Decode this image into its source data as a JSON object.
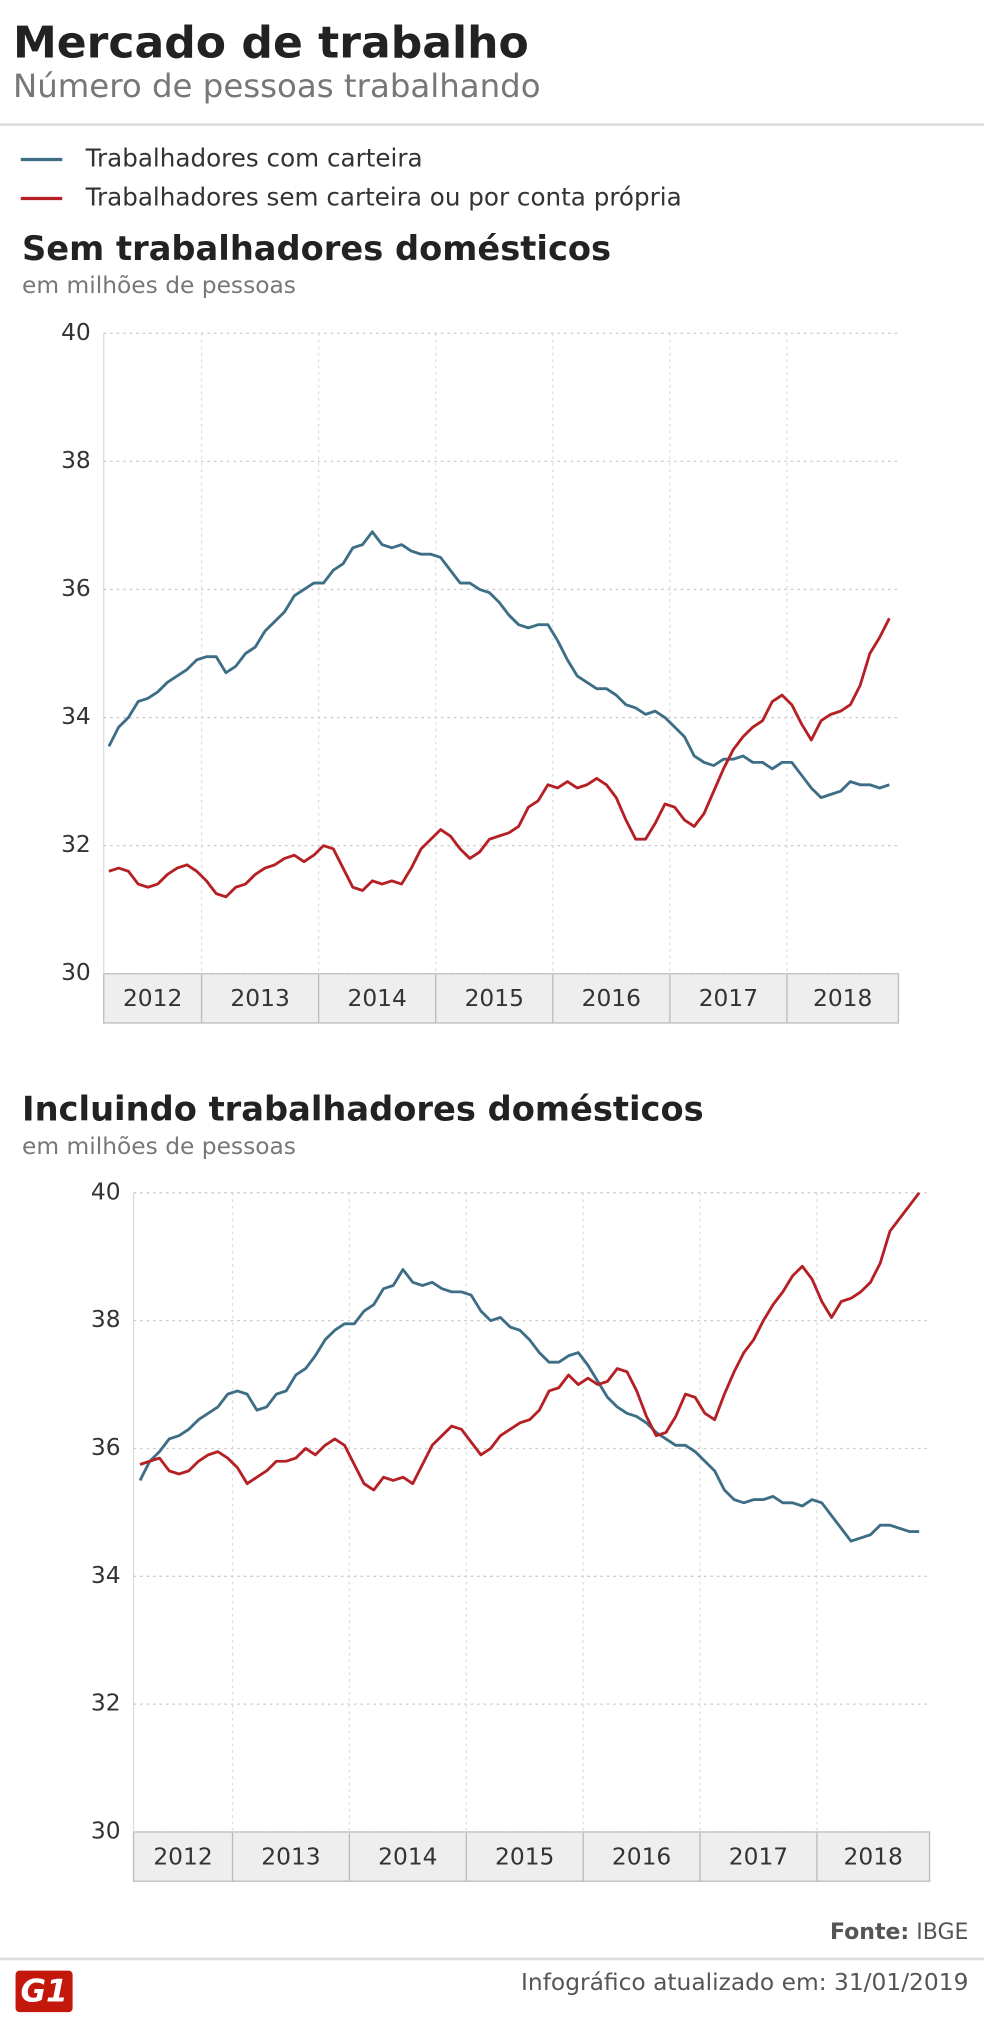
{
  "header": {
    "title": "Mercado de trabalho",
    "subtitle": "Número de pessoas trabalhando"
  },
  "chart_data": [
    {
      "type": "line",
      "title": "Sem trabalhadores domésticos",
      "subtitle": "em milhões de pessoas",
      "x_labels": [
        "2012",
        "2013",
        "2014",
        "2015",
        "2016",
        "2017",
        "2018"
      ],
      "ylim": [
        30,
        40
      ],
      "yticks": [
        30,
        32,
        34,
        36,
        38,
        40
      ],
      "grid": true,
      "series": [
        {
          "name": "Trabalhadores com carteira",
          "color": "#3d6e85",
          "values": [
            33.55,
            33.85,
            34.0,
            34.25,
            34.3,
            34.4,
            34.55,
            34.65,
            34.75,
            34.9,
            34.95,
            34.95,
            34.7,
            34.8,
            35.0,
            35.1,
            35.35,
            35.5,
            35.65,
            35.9,
            36.0,
            36.1,
            36.1,
            36.3,
            36.4,
            36.65,
            36.7,
            36.9,
            36.7,
            36.65,
            36.7,
            36.6,
            36.55,
            36.55,
            36.5,
            36.3,
            36.1,
            36.1,
            36.0,
            35.95,
            35.8,
            35.6,
            35.45,
            35.4,
            35.45,
            35.45,
            35.2,
            34.9,
            34.65,
            34.55,
            34.45,
            34.45,
            34.35,
            34.2,
            34.15,
            34.05,
            34.1,
            34.0,
            33.85,
            33.7,
            33.4,
            33.3,
            33.25,
            33.35,
            33.35,
            33.4,
            33.3,
            33.3,
            33.2,
            33.3,
            33.3,
            33.1,
            32.9,
            32.75,
            32.8,
            32.85,
            33.0,
            32.95,
            32.95,
            32.9,
            32.95
          ]
        },
        {
          "name": "Trabalhadores sem carteira ou por conta própria",
          "color": "#b52025",
          "values": [
            31.6,
            31.65,
            31.6,
            31.4,
            31.35,
            31.4,
            31.55,
            31.65,
            31.7,
            31.6,
            31.45,
            31.25,
            31.2,
            31.35,
            31.4,
            31.55,
            31.65,
            31.7,
            31.8,
            31.85,
            31.75,
            31.85,
            32.0,
            31.95,
            31.65,
            31.35,
            31.3,
            31.45,
            31.4,
            31.45,
            31.4,
            31.65,
            31.95,
            32.1,
            32.25,
            32.15,
            31.95,
            31.8,
            31.9,
            32.1,
            32.15,
            32.2,
            32.3,
            32.6,
            32.7,
            32.95,
            32.9,
            33.0,
            32.9,
            32.95,
            33.05,
            32.95,
            32.75,
            32.4,
            32.1,
            32.1,
            32.35,
            32.65,
            32.6,
            32.4,
            32.3,
            32.5,
            32.85,
            33.2,
            33.5,
            33.7,
            33.85,
            33.95,
            34.25,
            34.35,
            34.2,
            33.9,
            33.65,
            33.95,
            34.05,
            34.1,
            34.2,
            34.5,
            35.0,
            35.25,
            35.55
          ]
        }
      ]
    },
    {
      "type": "line",
      "title": "Incluindo trabalhadores domésticos",
      "subtitle": "em milhões de pessoas",
      "x_labels": [
        "2012",
        "2013",
        "2014",
        "2015",
        "2016",
        "2017",
        "2018"
      ],
      "ylim": [
        30,
        40
      ],
      "yticks": [
        30,
        32,
        34,
        36,
        38,
        40
      ],
      "grid": true,
      "series": [
        {
          "name": "Trabalhadores com carteira",
          "color": "#3d6e85",
          "values": [
            35.5,
            35.8,
            35.95,
            36.15,
            36.2,
            36.3,
            36.45,
            36.55,
            36.65,
            36.85,
            36.9,
            36.85,
            36.6,
            36.65,
            36.85,
            36.9,
            37.15,
            37.25,
            37.45,
            37.7,
            37.85,
            37.95,
            37.95,
            38.15,
            38.25,
            38.5,
            38.55,
            38.8,
            38.6,
            38.55,
            38.6,
            38.5,
            38.45,
            38.45,
            38.4,
            38.15,
            38.0,
            38.05,
            37.9,
            37.85,
            37.7,
            37.5,
            37.35,
            37.35,
            37.45,
            37.5,
            37.3,
            37.05,
            36.8,
            36.65,
            36.55,
            36.5,
            36.4,
            36.25,
            36.15,
            36.05,
            36.05,
            35.95,
            35.8,
            35.65,
            35.35,
            35.2,
            35.15,
            35.2,
            35.2,
            35.25,
            35.15,
            35.15,
            35.1,
            35.2,
            35.15,
            34.95,
            34.75,
            34.55,
            34.6,
            34.65,
            34.8,
            34.8,
            34.75,
            34.7,
            34.7
          ]
        },
        {
          "name": "Trabalhadores sem carteira ou por conta própria",
          "color": "#b52025",
          "values": [
            35.75,
            35.8,
            35.85,
            35.65,
            35.6,
            35.65,
            35.8,
            35.9,
            35.95,
            35.85,
            35.7,
            35.45,
            35.55,
            35.65,
            35.8,
            35.8,
            35.85,
            36.0,
            35.9,
            36.05,
            36.15,
            36.05,
            35.75,
            35.45,
            35.35,
            35.55,
            35.5,
            35.55,
            35.45,
            35.75,
            36.05,
            36.2,
            36.35,
            36.3,
            36.1,
            35.9,
            36.0,
            36.2,
            36.3,
            36.4,
            36.45,
            36.6,
            36.9,
            36.95,
            37.15,
            37.0,
            37.1,
            37.0,
            37.05,
            37.25,
            37.2,
            36.9,
            36.5,
            36.2,
            36.25,
            36.5,
            36.85,
            36.8,
            36.55,
            36.45,
            36.85,
            37.2,
            37.5,
            37.7,
            38.0,
            38.25,
            38.45,
            38.7,
            38.85,
            38.65,
            38.3,
            38.05,
            38.3,
            38.35,
            38.45,
            38.6,
            38.9,
            39.4,
            39.6,
            39.8,
            40.0
          ]
        }
      ]
    }
  ],
  "footer": {
    "source_label": "Fonte:",
    "source": "IBGE",
    "logo": "G1",
    "updated": "Infográfico atualizado em: 31/01/2019"
  }
}
